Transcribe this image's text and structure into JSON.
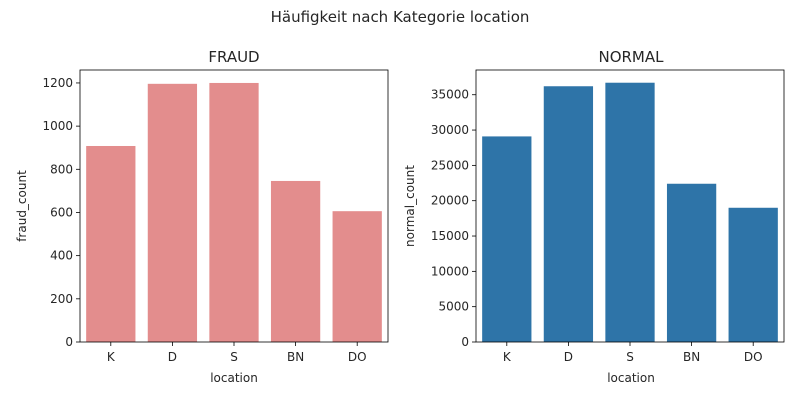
{
  "figure": {
    "suptitle": "Häufigkeit nach Kategorie location"
  },
  "chart_data": [
    {
      "type": "bar",
      "title": "FRAUD",
      "xlabel": "location",
      "ylabel": "fraud_count",
      "categories": [
        "K",
        "D",
        "S",
        "BN",
        "DO"
      ],
      "values": [
        908,
        1196,
        1200,
        746,
        606
      ],
      "ylim": [
        0,
        1260
      ],
      "yticks": [
        0,
        200,
        400,
        600,
        800,
        1000,
        1200
      ],
      "color": "#e38d8d"
    },
    {
      "type": "bar",
      "title": "NORMAL",
      "xlabel": "location",
      "ylabel": "normal_count",
      "categories": [
        "K",
        "D",
        "S",
        "BN",
        "DO"
      ],
      "values": [
        29100,
        36200,
        36700,
        22400,
        19000
      ],
      "ylim": [
        0,
        38500
      ],
      "yticks": [
        0,
        5000,
        10000,
        15000,
        20000,
        25000,
        30000,
        35000
      ],
      "color": "#2e74a8"
    }
  ]
}
